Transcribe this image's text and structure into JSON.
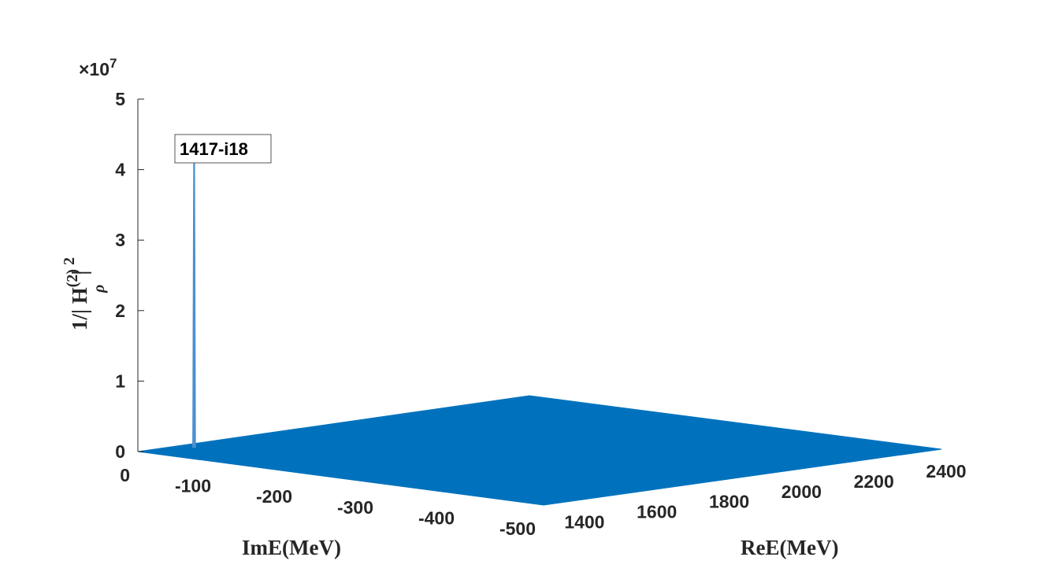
{
  "chart_data": {
    "type": "surface",
    "zlabel_main": "1/| H",
    "zlabel_sup": "(2)",
    "zlabel_sub": "ρ",
    "zlabel_tail": "| ",
    "zlabel_exp": "2",
    "xlabel": "ImE(MeV)",
    "ylabel": "ReE(MeV)",
    "z_multiplier_base": "×10",
    "z_multiplier_exp": "7",
    "z_ticks": [
      0,
      1,
      2,
      3,
      4,
      5
    ],
    "z_tick_labels": [
      "0",
      "1",
      "2",
      "3",
      "4",
      "5"
    ],
    "zlim": [
      0,
      5
    ],
    "imE_ticks": [
      0,
      -100,
      -200,
      -300,
      -400,
      -500
    ],
    "imE_tick_labels": [
      "0",
      "-100",
      "-200",
      "-300",
      "-400",
      "-500"
    ],
    "imE_range": [
      0,
      -500
    ],
    "reE_ticks": [
      1400,
      1600,
      1800,
      2000,
      2200,
      2400
    ],
    "reE_tick_labels": [
      "1400",
      "1600",
      "1800",
      "2000",
      "2200",
      "2400"
    ],
    "reE_range": [
      1300,
      2400
    ],
    "peak": {
      "re": 1417,
      "im": -18,
      "z": 4.18
    },
    "annotation": "1417-i18",
    "colors": {
      "surface": "#0072bd",
      "peak_line": "#4d8fd0",
      "marker": "#f08080",
      "axis": "#262626"
    }
  }
}
